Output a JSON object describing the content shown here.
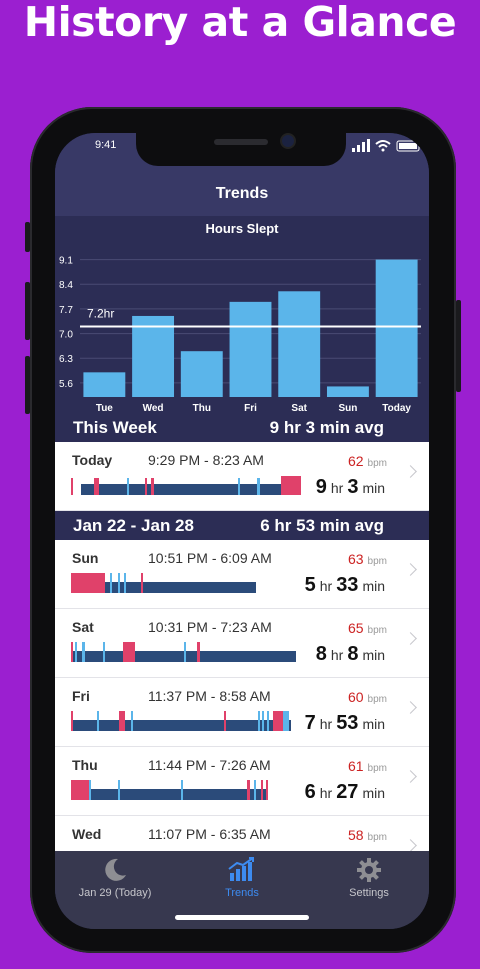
{
  "headline": "History at a Glance",
  "status": {
    "time": "9:41"
  },
  "nav": {
    "title": "Trends"
  },
  "chart_data": {
    "type": "bar",
    "title": "Hours Slept",
    "categories": [
      "Tue",
      "Wed",
      "Thu",
      "Fri",
      "Sat",
      "Sun",
      "Today"
    ],
    "values": [
      5.9,
      7.5,
      6.5,
      7.9,
      8.2,
      5.5,
      9.1
    ],
    "ylim": [
      5.2,
      9.4
    ],
    "yticks": [
      5.6,
      6.3,
      7.0,
      7.7,
      8.4,
      9.1
    ],
    "average_line": {
      "value": 7.2,
      "label": "7.2hr"
    },
    "colors": {
      "bar": "#5bb5ea",
      "bg": "#2c2d55",
      "grid": "#4a4b75",
      "avg": "#ffffff"
    }
  },
  "this_week": {
    "label": "This Week",
    "avg": "9 hr 3 min avg"
  },
  "today_row": {
    "day": "Today",
    "range": "9:29 PM - 8:23 AM",
    "bpm": "62",
    "bpm_unit": "bpm",
    "hr": "9",
    "min": "3"
  },
  "past_week": {
    "label": "Jan 22 - Jan 28",
    "avg": "6 hr 53 min avg"
  },
  "rows": [
    {
      "day": "Sun",
      "range": "10:51 PM - 6:09 AM",
      "bpm": "63",
      "bpm_unit": "bpm",
      "hr": "5",
      "min": "33"
    },
    {
      "day": "Sat",
      "range": "10:31 PM - 7:23 AM",
      "bpm": "65",
      "bpm_unit": "bpm",
      "hr": "8",
      "min": "8"
    },
    {
      "day": "Fri",
      "range": "11:37 PM - 8:58 AM",
      "bpm": "60",
      "bpm_unit": "bpm",
      "hr": "7",
      "min": "53"
    },
    {
      "day": "Thu",
      "range": "11:44 PM - 7:26 AM",
      "bpm": "61",
      "bpm_unit": "bpm",
      "hr": "6",
      "min": "27"
    },
    {
      "day": "Wed",
      "range": "11:07 PM - 6:35 AM",
      "bpm": "58",
      "bpm_unit": "bpm"
    }
  ],
  "units": {
    "hr": "hr",
    "min": "min"
  },
  "tabs": [
    {
      "label": "Jan 29 (Today)",
      "icon": "moon-icon",
      "active": false
    },
    {
      "label": "Trends",
      "icon": "trend-chart-icon",
      "active": true
    },
    {
      "label": "Settings",
      "icon": "gear-icon",
      "active": false
    }
  ]
}
